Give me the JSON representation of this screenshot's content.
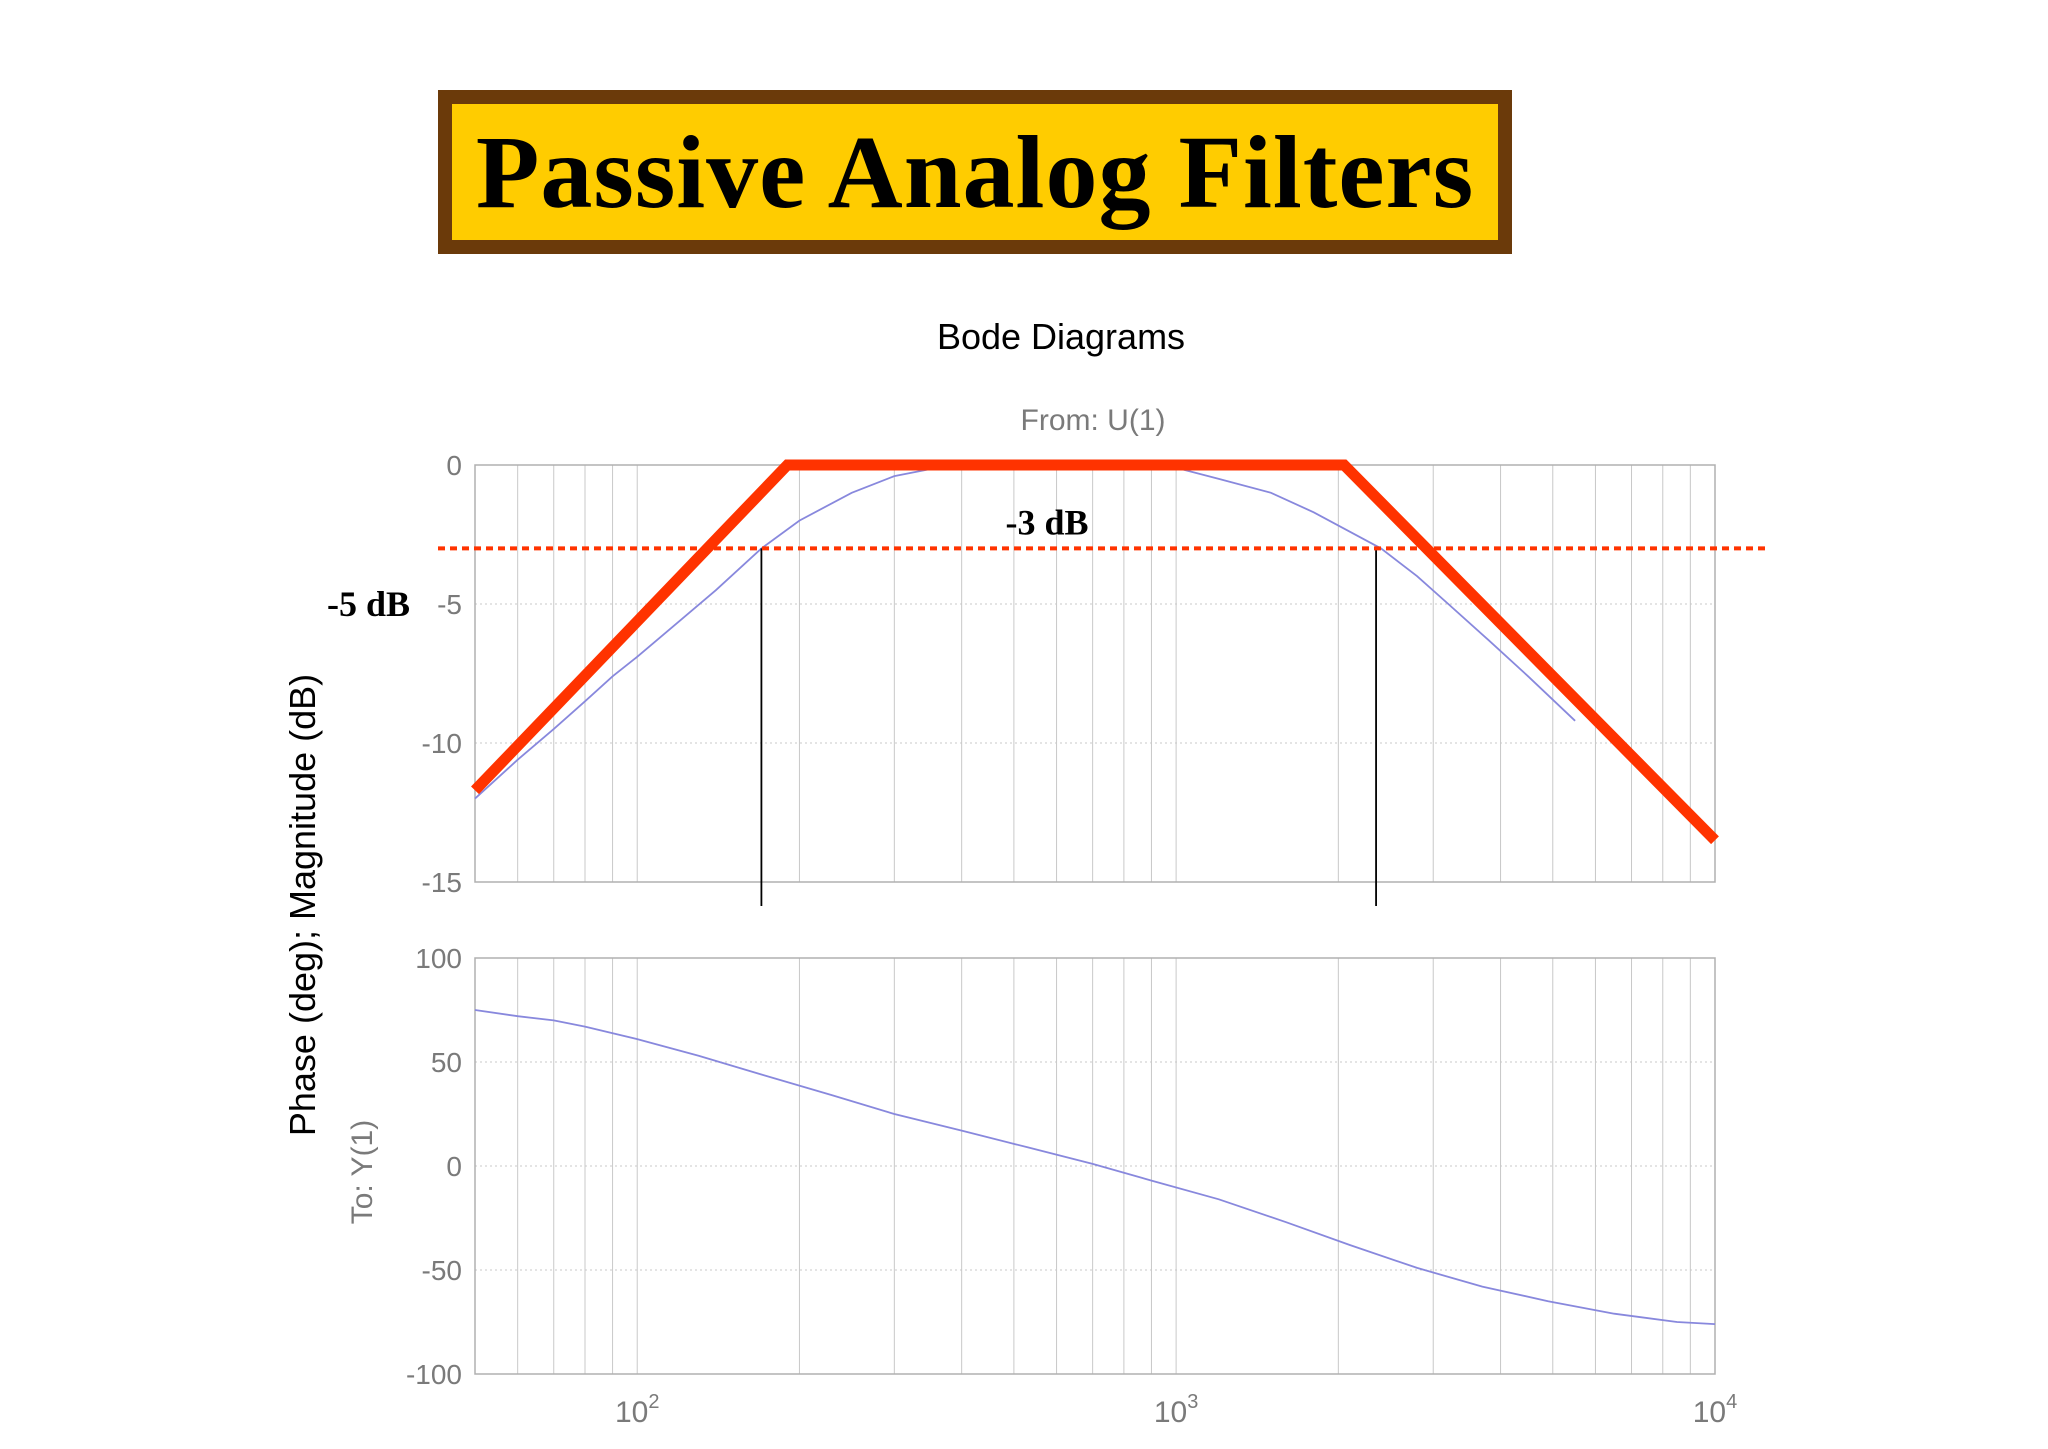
{
  "banner": {
    "title": "Passive Analog Filters"
  },
  "colors": {
    "banner_bg": "#ffcc00",
    "banner_border": "#6b3a0a",
    "asymptote": "#ff3300",
    "response": "#8888dd",
    "grid": "#c8c8c8",
    "axis_text": "#7a7a7a"
  },
  "chart_data": {
    "type": "line",
    "title": "Bode Diagrams",
    "from_label": "From: U(1)",
    "to_label": "To: Y(1)",
    "ylabel": "Phase (deg); Magnitude (dB)",
    "xscale": "log",
    "xlim": [
      50,
      10000
    ],
    "x_ticks": [
      {
        "value": 100,
        "base": "10",
        "exp": "2"
      },
      {
        "value": 1000,
        "base": "10",
        "exp": "3"
      },
      {
        "value": 10000,
        "base": "10",
        "exp": "4"
      }
    ],
    "grid": true,
    "magnitude": {
      "ylim": [
        -15,
        0
      ],
      "yticks": [
        0,
        -5,
        -10,
        -15
      ],
      "response": {
        "x": [
          50,
          60,
          70,
          80,
          90,
          100,
          120,
          140,
          170,
          200,
          250,
          300,
          360,
          450,
          600,
          800,
          1000,
          1200,
          1500,
          1800,
          2100,
          2400,
          2800,
          3200,
          3800,
          4500,
          5500
        ],
        "y": [
          -12.0,
          -10.6,
          -9.5,
          -8.5,
          -7.6,
          -6.9,
          -5.6,
          -4.5,
          -3.0,
          -2.0,
          -1.0,
          -0.4,
          -0.1,
          0.0,
          0.0,
          0.0,
          -0.1,
          -0.5,
          -1.0,
          -1.7,
          -2.4,
          -3.0,
          -4.0,
          -5.0,
          -6.3,
          -7.6,
          -9.2
        ]
      },
      "asymptote": {
        "x": [
          50,
          190,
          2050,
          10000
        ],
        "y": [
          -11.7,
          0,
          0,
          -13.5
        ]
      },
      "reference_line": {
        "y": -3,
        "label": "-3 dB"
      },
      "cutoff_markers": [
        170,
        2350
      ],
      "side_label": "-5 dB"
    },
    "phase": {
      "ylim": [
        -100,
        100
      ],
      "yticks": [
        100,
        50,
        0,
        -50,
        -100
      ],
      "response": {
        "x": [
          50,
          60,
          70,
          80,
          100,
          130,
          170,
          230,
          300,
          400,
          530,
          700,
          900,
          1200,
          1600,
          2100,
          2800,
          3700,
          4900,
          6500,
          8500,
          10000
        ],
        "y": [
          75,
          72,
          70,
          67,
          61,
          53,
          44,
          34,
          25,
          17,
          9,
          1,
          -7,
          -16,
          -27,
          -38,
          -49,
          -58,
          -65,
          -71,
          -75,
          -76
        ]
      }
    }
  }
}
